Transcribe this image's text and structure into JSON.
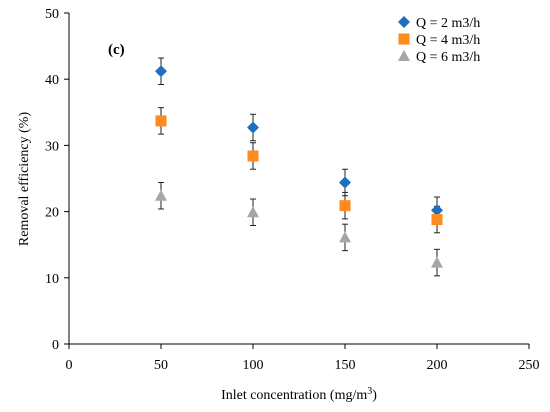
{
  "chart_data": {
    "type": "scatter",
    "panel_label": "(c)",
    "xlabel_main": "Inlet concentration (mg/m",
    "xlabel_sup": "3",
    "xlabel_end": ")",
    "ylabel": "Removal efficiency (%)",
    "xlim": [
      0,
      250
    ],
    "ylim": [
      0,
      50
    ],
    "xticks": [
      0,
      50,
      100,
      150,
      200,
      250
    ],
    "yticks": [
      0,
      10,
      20,
      30,
      40,
      50
    ],
    "grid": false,
    "legend_position": "top-right",
    "x": [
      50,
      100,
      150,
      200
    ],
    "series": [
      {
        "name": "Q = 2 m3/h",
        "marker": "diamond",
        "color": "#1f6fc0",
        "values": [
          41.2,
          32.7,
          24.4,
          20.2
        ],
        "error": [
          2.0,
          2.0,
          2.0,
          2.0
        ]
      },
      {
        "name": "Q = 4 m3/h",
        "marker": "square",
        "color": "#ff8a1e",
        "values": [
          33.7,
          28.4,
          20.9,
          18.8
        ],
        "error": [
          2.0,
          2.0,
          2.0,
          2.0
        ]
      },
      {
        "name": "Q = 6 m3/h",
        "marker": "triangle",
        "color": "#a6a6a6",
        "values": [
          22.4,
          19.9,
          16.1,
          12.3
        ],
        "error": [
          2.0,
          2.0,
          2.0,
          2.0
        ]
      }
    ]
  }
}
